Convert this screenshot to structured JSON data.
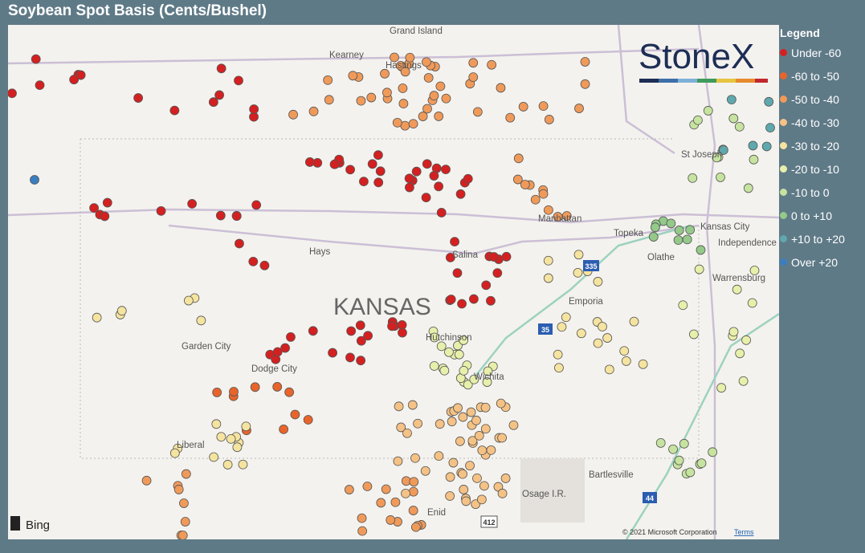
{
  "header": {
    "title": "Soybean Spot Basis (Cents/Bushel)"
  },
  "legend": {
    "title": "Legend",
    "items": [
      {
        "label": "Under -60",
        "color": "#d42020"
      },
      {
        "label": "-60 to -50",
        "color": "#e8642a"
      },
      {
        "label": "-50 to -40",
        "color": "#f09a5a"
      },
      {
        "label": "-40 to -30",
        "color": "#f5c285"
      },
      {
        "label": "-30 to -20",
        "color": "#f5e4a0"
      },
      {
        "label": "-20 to -10",
        "color": "#e8efaa"
      },
      {
        "label": "-10 to 0",
        "color": "#c6e3a0"
      },
      {
        "label": "0 to +10",
        "color": "#94c98a"
      },
      {
        "label": "+10 to +20",
        "color": "#5fa8ad"
      },
      {
        "label": "Over +20",
        "color": "#3a7ec0"
      }
    ]
  },
  "logo": "StoneX",
  "map_labels": [
    "Grand Island",
    "Kearney",
    "Hastings",
    "St Joseph",
    "Manhattan",
    "Topeka",
    "Kansas City",
    "Independence",
    "Olathe",
    "Hays",
    "Salina",
    "KANSAS",
    "Emporia",
    "Warrensburg",
    "Garden City",
    "Hutchinson",
    "Dodge City",
    "Wichita",
    "Liberal",
    "Bartlesville",
    "Osage I.R.",
    "Enid"
  ],
  "highway_labels": [
    "335",
    "35",
    "44",
    "412"
  ],
  "footer": {
    "brand": "Bing",
    "copyright": "© 2021 Microsoft Corporation",
    "terms": "Terms"
  }
}
